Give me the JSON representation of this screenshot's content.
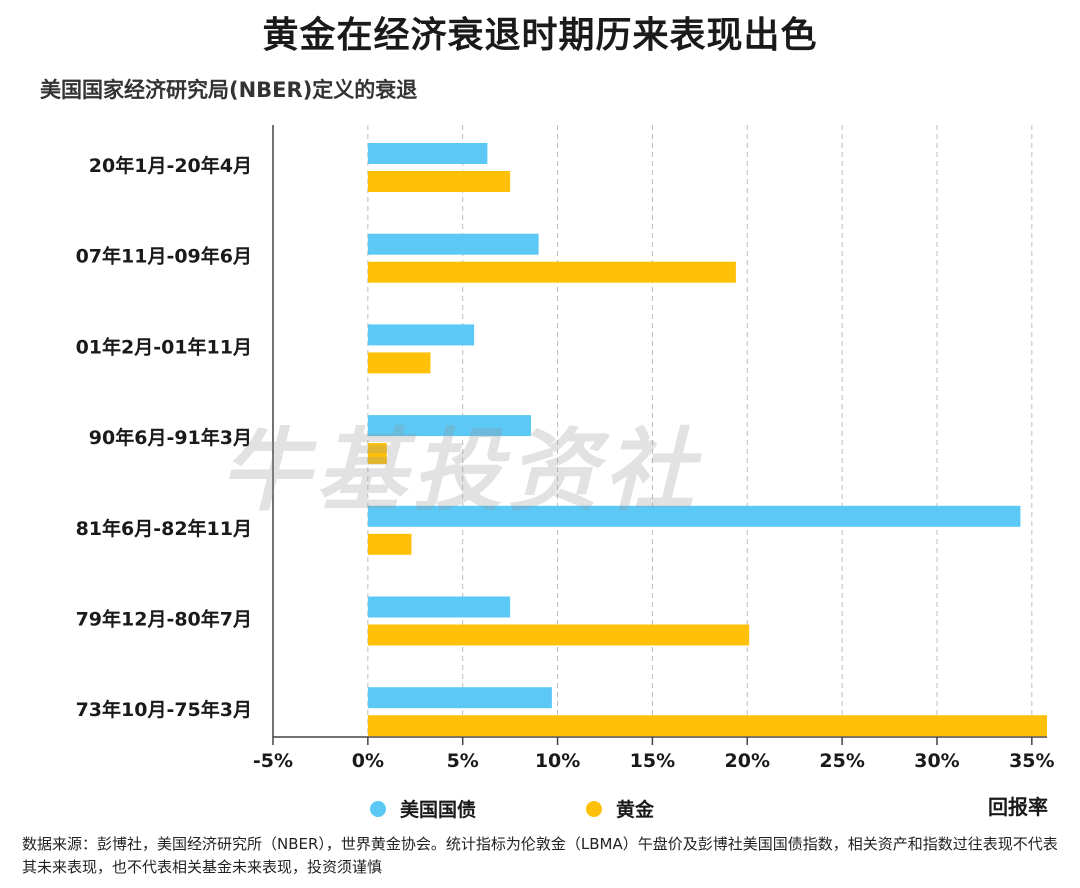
{
  "title": "黄金在经济衰退时期历来表现出色",
  "subtitle": "美国国家经济研究局(NBER)定义的衰退",
  "watermark": "牛基投资社",
  "legend": {
    "bond_label": "美国国债",
    "gold_label": "黄金"
  },
  "colors": {
    "bond": "#5BC8F5",
    "gold": "#FFC107"
  },
  "source": "数据来源：彭博社，美国经济研究所（NBER），世界黄金协会。统计指标为伦敦金（LBMA）午盘价及彭博社美国国债指数，相关资产和指数过往表现不代表其未来表现，也不代表相关基金未来表现，投资须谨慎",
  "chart_data": {
    "type": "bar",
    "orientation": "horizontal",
    "categories": [
      "20年1月-20年4月",
      "07年11月-09年6月",
      "01年2月-01年11月",
      "90年6月-91年3月",
      "81年6月-82年11月",
      "79年12月-80年7月",
      "73年10月-75年3月"
    ],
    "series": [
      {
        "name": "美国国债",
        "values": [
          6.3,
          9.0,
          5.6,
          8.6,
          34.4,
          7.5,
          9.7
        ]
      },
      {
        "name": "黄金",
        "values": [
          7.5,
          19.4,
          3.3,
          1.0,
          2.3,
          20.1,
          35.8
        ]
      }
    ],
    "xlabel": "回报率",
    "xlim": [
      -5,
      35.8
    ],
    "x_ticks": [
      "-5%",
      "0%",
      "5%",
      "10%",
      "15%",
      "20%",
      "25%",
      "30%",
      "35%"
    ],
    "x_tick_values": [
      -5,
      0,
      5,
      10,
      15,
      20,
      25,
      30,
      35
    ],
    "grid": true,
    "legend_position": "bottom"
  }
}
